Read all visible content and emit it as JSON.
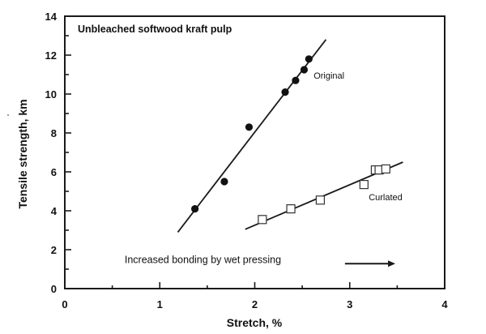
{
  "chart_data": {
    "type": "scatter",
    "title": "Unbleached softwood kraft pulp",
    "xlabel": "Stretch, %",
    "ylabel": "Tensile strength, km",
    "xlim": [
      0,
      4
    ],
    "ylim": [
      0,
      14
    ],
    "xticks": [
      0,
      1,
      2,
      3,
      4
    ],
    "yticks": [
      0,
      2,
      4,
      6,
      8,
      10,
      12,
      14
    ],
    "grid": false,
    "series": [
      {
        "name": "Original",
        "marker": "filled-circle",
        "points": [
          {
            "x": 1.37,
            "y": 4.1
          },
          {
            "x": 1.68,
            "y": 5.5
          },
          {
            "x": 1.94,
            "y": 8.3
          },
          {
            "x": 2.32,
            "y": 10.1
          },
          {
            "x": 2.43,
            "y": 10.7
          },
          {
            "x": 2.52,
            "y": 11.25
          },
          {
            "x": 2.57,
            "y": 11.8
          }
        ],
        "fit_line": {
          "x1": 1.19,
          "y1": 2.9,
          "x2": 2.75,
          "y2": 12.8
        },
        "label_pos": {
          "x": 2.62,
          "y": 10.8
        }
      },
      {
        "name": "Curlated",
        "marker": "open-square",
        "points": [
          {
            "x": 2.08,
            "y": 3.55
          },
          {
            "x": 2.38,
            "y": 4.1
          },
          {
            "x": 2.69,
            "y": 4.55
          },
          {
            "x": 3.15,
            "y": 5.35
          },
          {
            "x": 3.27,
            "y": 6.1
          },
          {
            "x": 3.31,
            "y": 6.1
          },
          {
            "x": 3.38,
            "y": 6.15
          }
        ],
        "fit_line": {
          "x1": 1.9,
          "y1": 3.05,
          "x2": 3.56,
          "y2": 6.5
        },
        "label_pos": {
          "x": 3.2,
          "y": 4.55
        }
      }
    ],
    "annotations": [
      {
        "text": "Increased bonding by wet pressing",
        "x": 0.63,
        "y": 1.32
      },
      {
        "type": "arrow",
        "x1": 2.95,
        "y1": 1.28,
        "x2": 3.48,
        "y2": 1.28
      }
    ]
  }
}
